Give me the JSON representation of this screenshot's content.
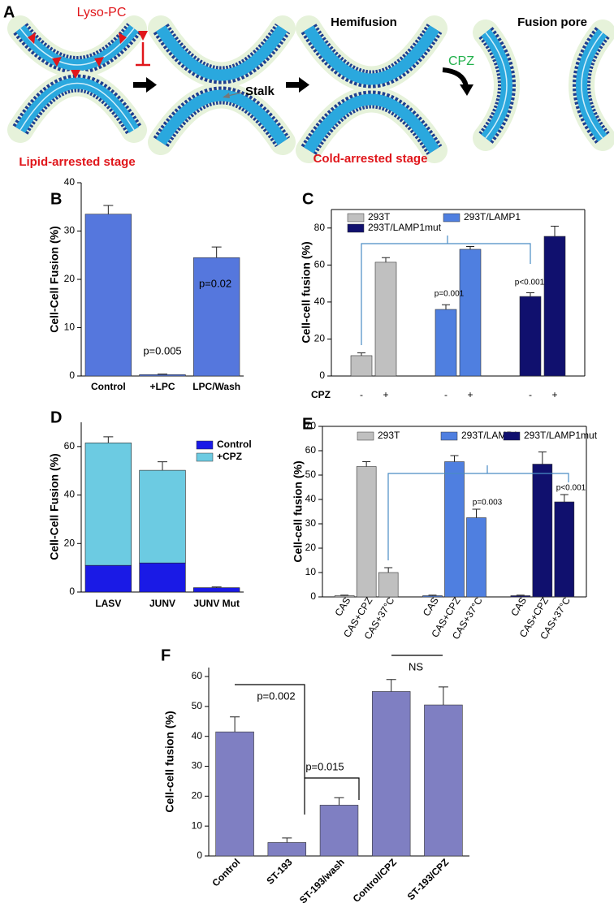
{
  "diagram": {
    "panel": "A",
    "lyso_pc": "Lyso-PC",
    "stalk": "Stalk",
    "hemifusion": "Hemifusion",
    "cpz": "CPZ",
    "fusion_pore": "Fusion pore",
    "lipid_arrested": "Lipid-arrested stage",
    "cold_arrested": "Cold-arrested stage"
  },
  "chart_data": [
    {
      "type": "bar",
      "panel": "B",
      "ylabel": "Cell-Cell Fusion (%)",
      "categories": [
        "Control",
        "+LPC",
        "LPC/Wash"
      ],
      "values": [
        33.5,
        0.3,
        24.5
      ],
      "errors": [
        1.8,
        0.1,
        2.2
      ],
      "color": "#5577dd",
      "ylim": [
        0,
        40
      ],
      "yticks": [
        0,
        10,
        20,
        30,
        40
      ],
      "annotations": [
        "p=0.005",
        "p=0.02"
      ],
      "annotation_color": "#3c4fa8"
    },
    {
      "type": "grouped_bar",
      "panel": "C",
      "ylabel": "Cell-cell fusion (%)",
      "xlabel": "CPZ",
      "categories": [
        "-",
        "+"
      ],
      "series": [
        {
          "name": "293T",
          "color": "#c0c0c0",
          "values": [
            11,
            61.5
          ],
          "errors": [
            1.5,
            2.5
          ]
        },
        {
          "name": "293T/LAMP1",
          "color": "#4f7fe0",
          "values": [
            36,
            68.5
          ],
          "errors": [
            2.5,
            1.5
          ]
        },
        {
          "name": "293T/LAMP1mut",
          "color": "#10106e",
          "values": [
            43,
            75.5
          ],
          "errors": [
            2,
            5.5
          ]
        }
      ],
      "ylim": [
        0,
        90
      ],
      "yticks": [
        0,
        20,
        40,
        60,
        80
      ],
      "annotations": [
        "p=0.001",
        "p<0.001"
      ],
      "box": true
    },
    {
      "type": "stacked_bar",
      "panel": "D",
      "ylabel": "Cell-Cell Fusion (%)",
      "categories": [
        "LASV",
        "JUNV",
        "JUNV Mut"
      ],
      "series": [
        {
          "name": "Control",
          "color": "#1a1ae6",
          "values": [
            11,
            12,
            1.8
          ],
          "errors": [
            1.2,
            1.2,
            0.3
          ]
        },
        {
          "name": "+CPZ",
          "color": "#6ccbe2",
          "values": [
            50.5,
            38.2,
            0
          ],
          "errors": [
            2.5,
            3.5,
            null
          ]
        }
      ],
      "ylim": [
        0,
        70
      ],
      "yticks": [
        0,
        20,
        40,
        60
      ],
      "legend": "upper right"
    },
    {
      "type": "grouped_bar",
      "panel": "E",
      "ylabel": "Cell-cell fusion (%)",
      "categories": [
        "CAS",
        "CAS+CPZ",
        "CAS+37°C"
      ],
      "series": [
        {
          "name": "293T",
          "color": "#c0c0c0",
          "values": [
            0.5,
            53.5,
            10
          ],
          "errors": [
            0.2,
            2,
            2
          ]
        },
        {
          "name": "293T/LAMP1",
          "color": "#4f7fe0",
          "values": [
            0.5,
            55.5,
            32.5
          ],
          "errors": [
            0.2,
            2.5,
            3.5
          ]
        },
        {
          "name": "293T/LAMP1mut",
          "color": "#10106e",
          "values": [
            0.5,
            54.5,
            39
          ],
          "errors": [
            0.2,
            5,
            3
          ]
        }
      ],
      "ylim": [
        0,
        70
      ],
      "yticks": [
        0,
        10,
        20,
        30,
        40,
        50,
        60,
        70
      ],
      "annotations": [
        "p=0.003",
        "p<0.001"
      ],
      "box": true,
      "rotated_labels": true
    },
    {
      "type": "bar",
      "panel": "F",
      "ylabel": "Cell-cell fusion (%)",
      "categories": [
        "Control",
        "ST-193",
        "ST-193/wash",
        "Control/CPZ",
        "ST-193/CPZ"
      ],
      "values": [
        41.5,
        4.5,
        17,
        55,
        50.5
      ],
      "errors": [
        5,
        1.5,
        2.5,
        4,
        6
      ],
      "color": "#7f7fc2",
      "ylim": [
        0,
        63
      ],
      "yticks": [
        0,
        10,
        20,
        30,
        40,
        50,
        60
      ],
      "annotations": [
        "p=0.002",
        "p=0.015",
        "NS"
      ],
      "rotated_labels": true
    }
  ]
}
